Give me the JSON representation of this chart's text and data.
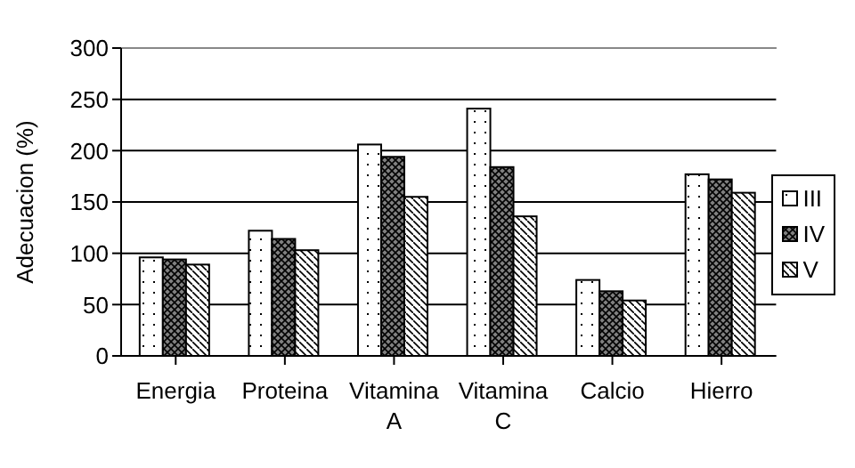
{
  "chart_data": {
    "type": "bar",
    "categories": [
      "Energia",
      "Proteina",
      "Vitamina A",
      "Vitamina C",
      "Calcio",
      "Hierro"
    ],
    "ylabel": "Adecuacion (%)",
    "ylim": [
      0,
      300
    ],
    "yticks": [
      0,
      50,
      100,
      150,
      200,
      250,
      300
    ],
    "grid": "y",
    "legend": "right",
    "series": [
      {
        "name": "III",
        "color": "#ffffff",
        "values": [
          96,
          122,
          206,
          241,
          74,
          177
        ]
      },
      {
        "name": "IV",
        "color": "#808080",
        "values": [
          94,
          114,
          194,
          184,
          63,
          172
        ]
      },
      {
        "name": "V",
        "color": "#ffffff",
        "values": [
          89,
          103,
          155,
          136,
          54,
          159
        ]
      }
    ]
  }
}
